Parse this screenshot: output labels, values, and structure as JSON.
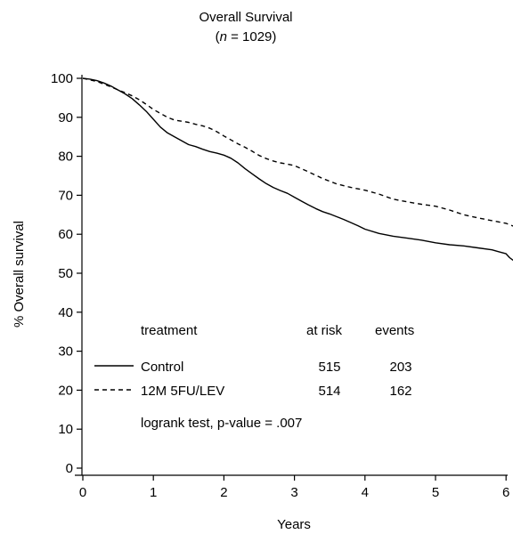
{
  "chart_data": {
    "type": "line",
    "title": "Overall Survival",
    "subtitle_prefix": "(",
    "subtitle_n": "n",
    "subtitle_rest": " = 1029)",
    "xlabel": "Years",
    "ylabel": "% Overall survival",
    "xlim": [
      0,
      6.1
    ],
    "ylim": [
      0,
      100
    ],
    "xticks": [
      "0",
      "1",
      "2",
      "3",
      "4",
      "5",
      "6"
    ],
    "yticks": [
      "0",
      "10",
      "20",
      "30",
      "40",
      "50",
      "60",
      "70",
      "80",
      "90",
      "100"
    ],
    "grid": false,
    "legend": {
      "placement": "bottom-left",
      "headers": {
        "treatment": "treatment",
        "at_risk": "at risk",
        "events": "events"
      },
      "rows": [
        {
          "name": "Control",
          "style": "solid",
          "at_risk": "515",
          "events": "203"
        },
        {
          "name": "12M 5FU/LEV",
          "style": "dashed",
          "at_risk": "514",
          "events": "162"
        }
      ],
      "note": "logrank test, p-value = .007"
    },
    "series": [
      {
        "name": "Control",
        "style": "solid",
        "color": "#000000",
        "x": [
          0,
          0.1,
          0.2,
          0.3,
          0.4,
          0.5,
          0.6,
          0.7,
          0.8,
          0.9,
          1.0,
          1.1,
          1.2,
          1.3,
          1.4,
          1.5,
          1.6,
          1.7,
          1.8,
          1.9,
          2.0,
          2.1,
          2.2,
          2.3,
          2.4,
          2.5,
          2.6,
          2.7,
          2.8,
          2.9,
          3.0,
          3.1,
          3.2,
          3.3,
          3.4,
          3.5,
          3.6,
          3.7,
          3.8,
          3.9,
          4.0,
          4.2,
          4.4,
          4.6,
          4.8,
          5.0,
          5.2,
          5.4,
          5.6,
          5.8,
          5.9,
          6.0,
          6.05,
          6.1
        ],
        "y": [
          100,
          99.8,
          99.4,
          98.8,
          98,
          97,
          96,
          94.8,
          93.2,
          91.5,
          89.5,
          87.5,
          86,
          85,
          84,
          83,
          82.5,
          81.8,
          81.2,
          80.8,
          80.3,
          79.5,
          78.3,
          76.8,
          75.5,
          74.2,
          73,
          72,
          71.2,
          70.5,
          69.5,
          68.5,
          67.5,
          66.6,
          65.8,
          65.2,
          64.5,
          63.8,
          63,
          62.2,
          61.3,
          60.2,
          59.5,
          59,
          58.5,
          57.8,
          57.3,
          57,
          56.5,
          56,
          55.5,
          55,
          54,
          53.3
        ]
      },
      {
        "name": "12M 5FU/LEV",
        "style": "dashed",
        "color": "#000000",
        "x": [
          0,
          0.1,
          0.2,
          0.3,
          0.4,
          0.5,
          0.6,
          0.7,
          0.8,
          0.9,
          1.0,
          1.1,
          1.2,
          1.3,
          1.4,
          1.5,
          1.6,
          1.7,
          1.8,
          1.9,
          2.0,
          2.1,
          2.2,
          2.3,
          2.4,
          2.5,
          2.6,
          2.7,
          2.8,
          2.9,
          3.0,
          3.2,
          3.4,
          3.6,
          3.8,
          4.0,
          4.2,
          4.4,
          4.6,
          4.8,
          5.0,
          5.2,
          5.4,
          5.6,
          5.8,
          6.0,
          6.1
        ],
        "y": [
          100,
          99.6,
          99.2,
          98.5,
          97.8,
          97,
          96.3,
          95.5,
          94.5,
          93.3,
          92,
          91,
          90,
          89.3,
          89,
          88.7,
          88.2,
          87.8,
          87.2,
          86.3,
          85.2,
          84.2,
          83.2,
          82.3,
          81.3,
          80.2,
          79.4,
          78.8,
          78.3,
          78,
          77.6,
          76,
          74.3,
          72.9,
          72,
          71.3,
          70.3,
          69,
          68.3,
          67.7,
          67.2,
          66.2,
          65,
          64.2,
          63.5,
          62.8,
          62.1
        ]
      }
    ]
  }
}
